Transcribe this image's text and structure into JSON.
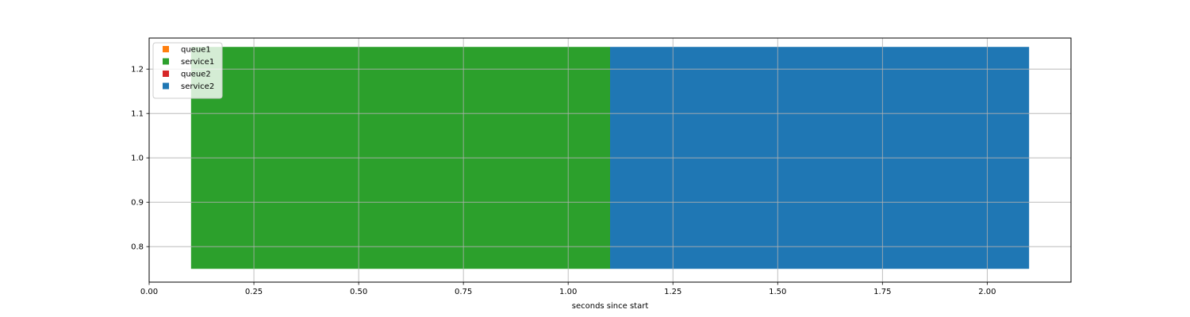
{
  "chart_data": {
    "type": "bar",
    "orientation": "horizontal",
    "title": "",
    "xlabel": "seconds since start",
    "ylabel": "",
    "xlim": [
      0.0,
      2.2
    ],
    "ylim": [
      0.72,
      1.27
    ],
    "grid": true,
    "legend_position": "top-left",
    "x_ticks": [
      "0.00",
      "0.25",
      "0.50",
      "0.75",
      "1.00",
      "1.25",
      "1.50",
      "1.75",
      "2.00"
    ],
    "y_ticks": [
      "0.8",
      "0.9",
      "1.0",
      "1.1",
      "1.2"
    ],
    "series": [
      {
        "name": "queue1",
        "color": "#ff7f0e",
        "segments": []
      },
      {
        "name": "service1",
        "color": "#2ca02c",
        "segments": [
          {
            "start": 0.1,
            "end": 1.1,
            "y_low": 0.75,
            "y_high": 1.25
          }
        ]
      },
      {
        "name": "queue2",
        "color": "#d62728",
        "segments": []
      },
      {
        "name": "service2",
        "color": "#1f77b4",
        "segments": [
          {
            "start": 1.1,
            "end": 2.1,
            "y_low": 0.75,
            "y_high": 1.25
          }
        ]
      }
    ]
  }
}
